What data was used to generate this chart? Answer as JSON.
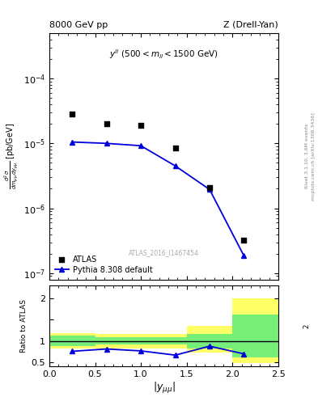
{
  "title_left": "8000 GeV pp",
  "title_right": "Z (Drell-Yan)",
  "annotation": "y^{ll} (500 < m_{ll} < 1500 GeV)",
  "watermark": "ATLAS_2016_I1467454",
  "right_label1": "Rivet 3.1.10, 3.6M events",
  "right_label2": "mcplots.cern.ch [arXiv:1306.3436]",
  "ylabel_main": "d^{2}#sigma / dm_{#mumu} dy_{#mumu}  [pb/GeV]",
  "ylabel_ratio": "Ratio to ATLAS",
  "xlabel": "|y_{#mumu}|",
  "atlas_x": [
    0.25,
    0.625,
    1.0,
    1.375,
    1.75,
    2.125
  ],
  "atlas_y": [
    2.8e-05,
    2e-05,
    1.9e-05,
    8.5e-06,
    2.1e-06,
    3.2e-07
  ],
  "pythia_x": [
    0.25,
    0.625,
    1.0,
    1.375,
    1.75,
    2.125
  ],
  "pythia_y": [
    1.05e-05,
    1e-05,
    9.2e-06,
    4.5e-06,
    1.95e-06,
    1.85e-07
  ],
  "ratio_x": [
    0.25,
    0.625,
    1.0,
    1.375,
    1.75,
    2.125
  ],
  "ratio_y": [
    0.755,
    0.81,
    0.765,
    0.665,
    0.875,
    0.695
  ],
  "band_edges": [
    0.0,
    0.5,
    1.0,
    1.5,
    2.0,
    2.5
  ],
  "yellow_band_lo": [
    0.82,
    0.83,
    0.83,
    0.72,
    0.48,
    0.48
  ],
  "yellow_band_hi": [
    1.18,
    1.17,
    1.17,
    1.35,
    2.0,
    2.0
  ],
  "green_band_lo": [
    0.88,
    0.92,
    0.92,
    0.83,
    0.62,
    0.62
  ],
  "green_band_hi": [
    1.12,
    1.08,
    1.08,
    1.17,
    1.62,
    1.62
  ],
  "ylim_main_log": [
    8e-08,
    0.0005
  ],
  "ylim_ratio": [
    0.4,
    2.3
  ],
  "xlim": [
    0.0,
    2.5
  ],
  "blue_color": "#0000dd",
  "yellow_color": "#ffff66",
  "green_color": "#77ee77",
  "bg_color": "#ffffff"
}
